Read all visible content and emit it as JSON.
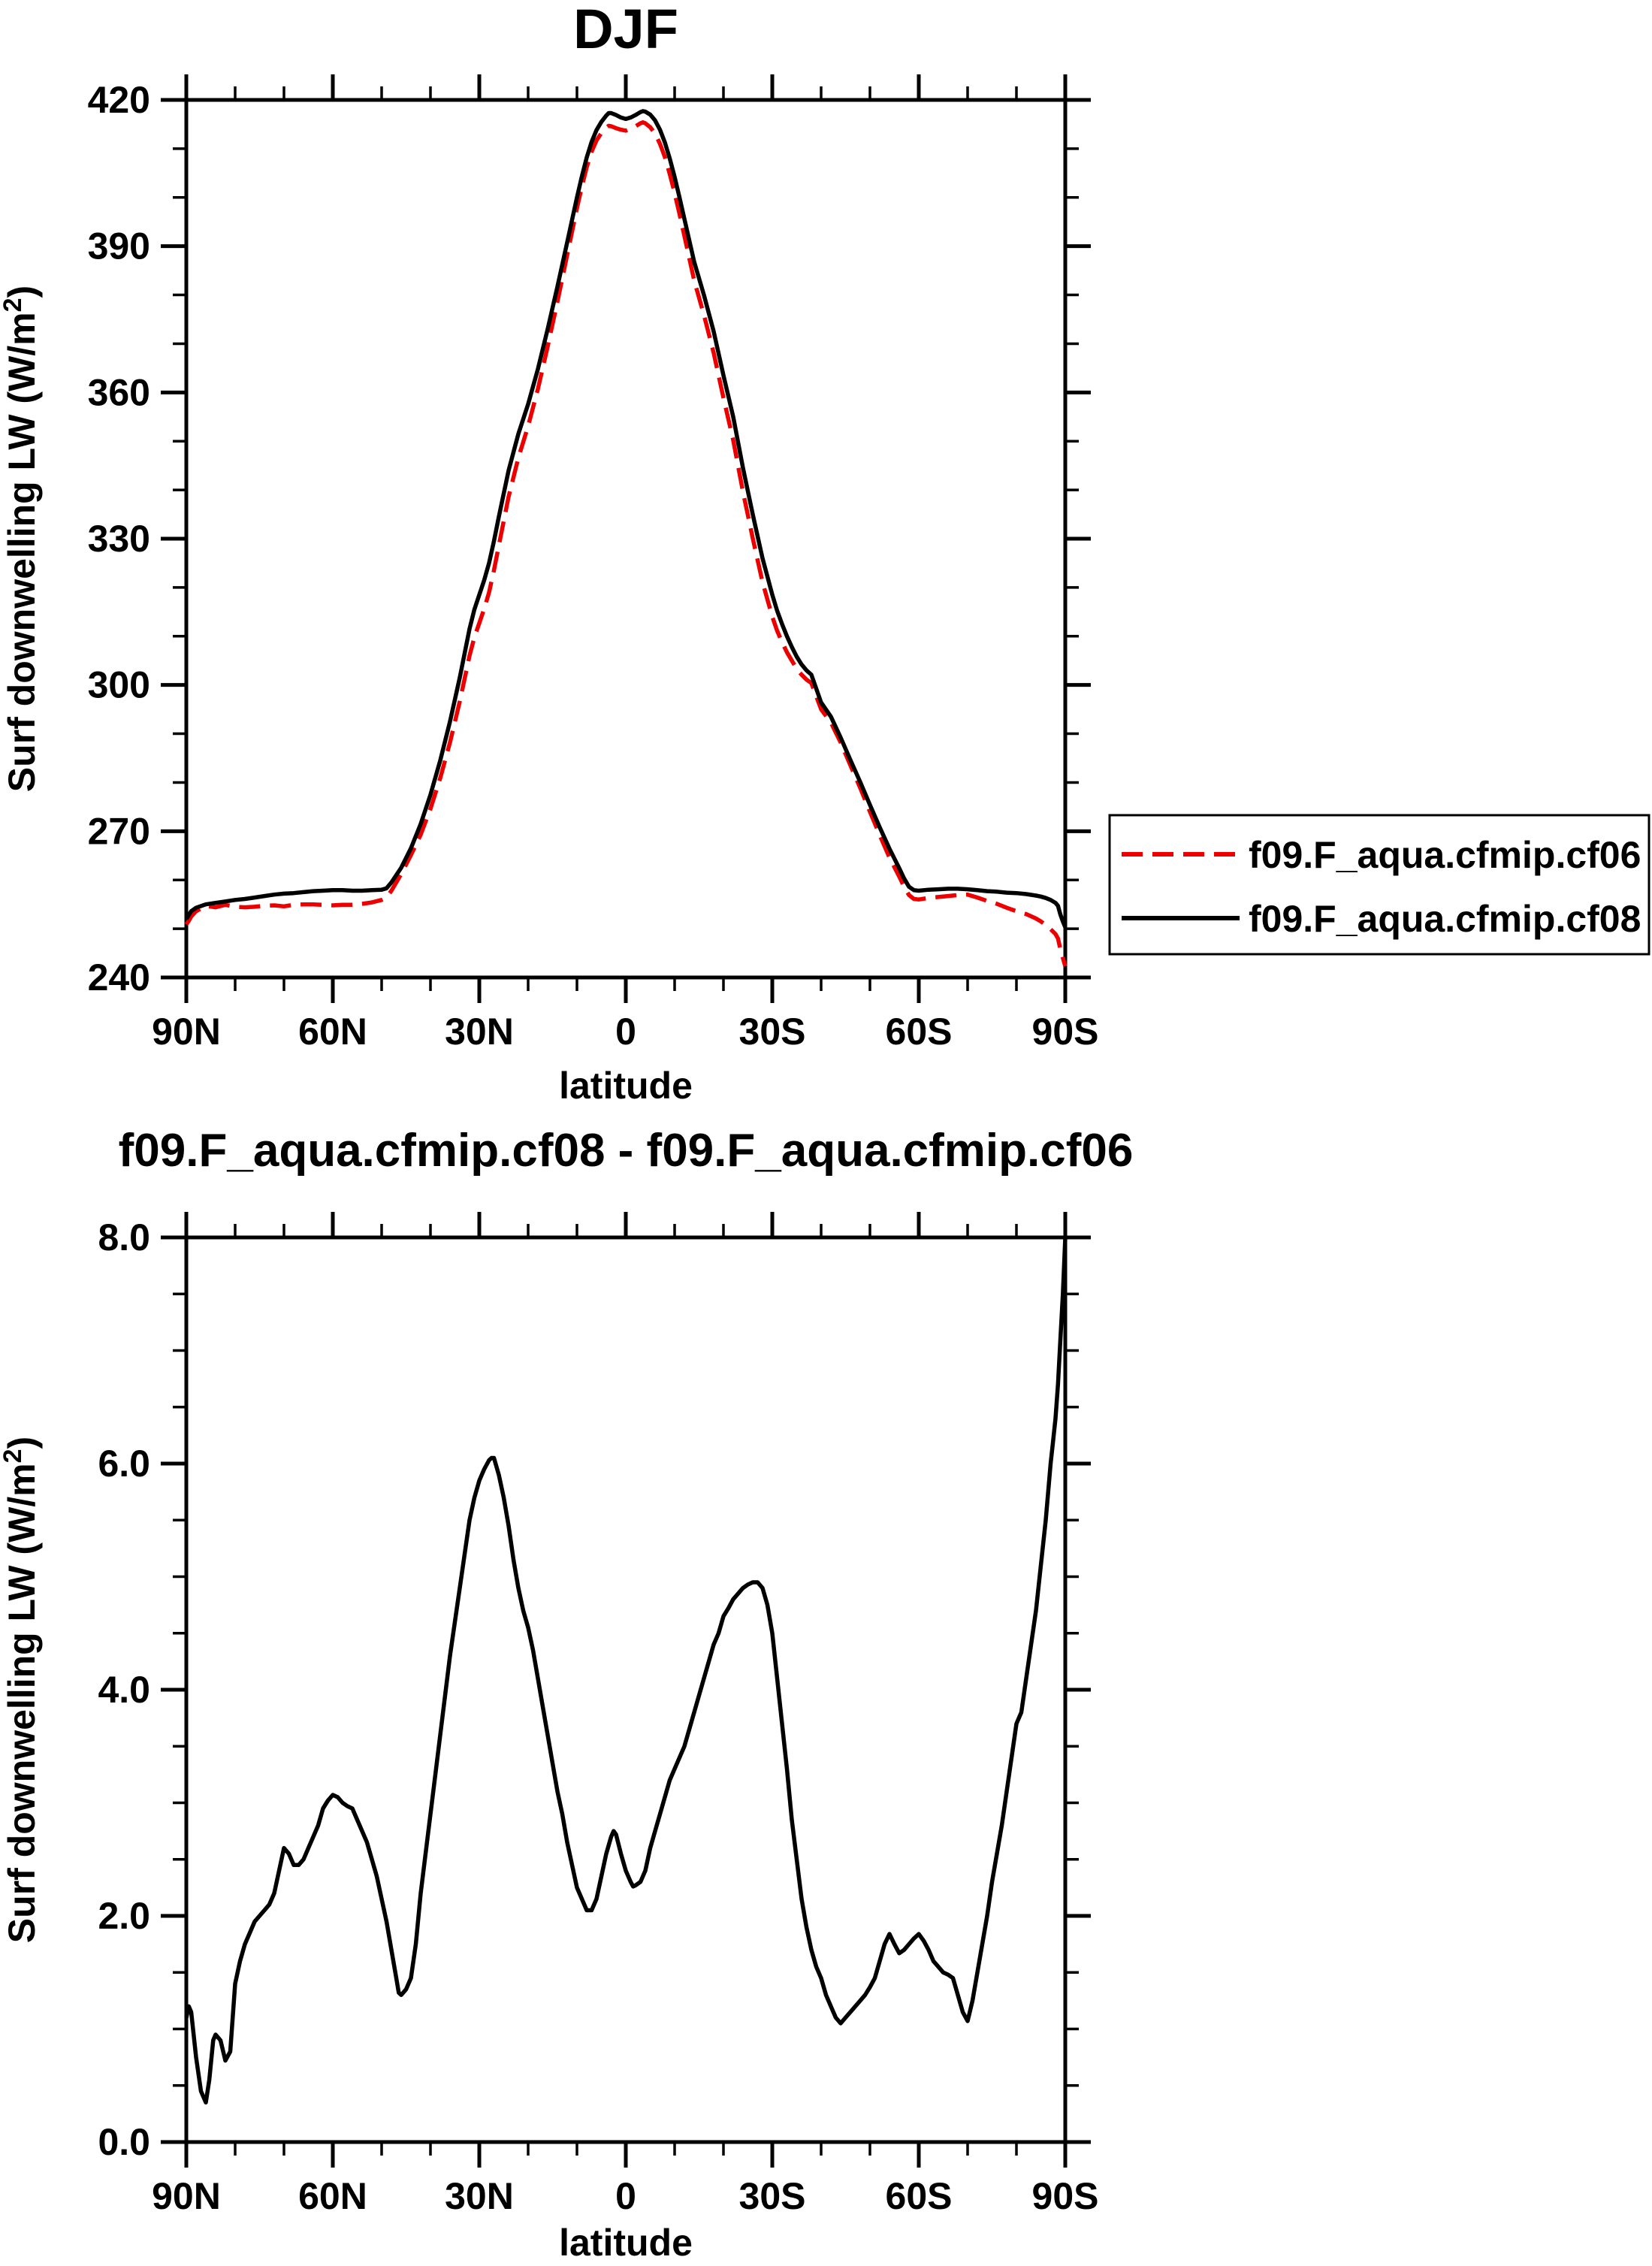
{
  "page": {
    "background": "#ffffff",
    "axis_color": "#000000"
  },
  "chart_data": [
    {
      "type": "line",
      "title": "DJF",
      "xlabel": "latitude",
      "ylabel_parts": [
        "Surf downwelling LW (W/m",
        "2",
        ")"
      ],
      "xlim": [
        90,
        -90
      ],
      "ylim": [
        240,
        420
      ],
      "y_major_step": 30,
      "y_minor_step": 10,
      "x_major_step": 30,
      "x_minor_step": 10,
      "ytick_labels": [
        "240",
        "270",
        "300",
        "330",
        "360",
        "390",
        "420"
      ],
      "ytick_values": [
        240,
        270,
        300,
        330,
        360,
        390,
        420
      ],
      "xtick_labels": [
        "90N",
        "60N",
        "30N",
        "0",
        "30S",
        "60S",
        "90S"
      ],
      "xtick_values": [
        90,
        60,
        30,
        0,
        -30,
        -60,
        -90
      ],
      "legend_position": "right-outside",
      "grid": false,
      "lats": [
        90,
        89.5,
        89,
        88,
        86,
        84,
        82,
        80,
        78,
        76,
        74,
        72,
        70,
        68,
        66,
        64,
        62,
        60,
        58,
        56,
        54,
        52,
        50,
        49,
        48,
        46,
        44,
        42,
        40,
        38,
        36,
        34,
        32,
        31,
        30,
        29,
        28,
        27,
        26,
        24,
        22,
        20,
        18,
        16,
        14,
        12,
        11,
        10,
        9,
        8,
        7,
        6,
        5,
        4,
        3.5,
        3,
        2,
        1,
        0,
        -1,
        -2,
        -3,
        -3.5,
        -4,
        -5,
        -6,
        -7,
        -8,
        -9,
        -10,
        -11,
        -12,
        -14,
        -16,
        -18,
        -20,
        -22,
        -24,
        -26,
        -28,
        -30,
        -31,
        -32,
        -33,
        -34,
        -35,
        -36,
        -37,
        -38,
        -40,
        -42,
        -44,
        -46,
        -48,
        -50,
        -52,
        -54,
        -56,
        -57,
        -58,
        -59,
        -60,
        -62,
        -64,
        -66,
        -68,
        -70,
        -72,
        -74,
        -76,
        -78,
        -80,
        -82,
        -84,
        -85,
        -86,
        -87,
        -88,
        -88.5,
        -89,
        -89.5,
        -90
      ],
      "series": [
        {
          "name": "f09.F_aqua.cfmip.cf06",
          "color": "#ee0000",
          "style": "dashed",
          "values": [
            250.9,
            251.6,
            252.5,
            253.6,
            254.7,
            254.4,
            254.9,
            254.5,
            254.4,
            254.5,
            254.7,
            254.8,
            254.6,
            254.9,
            255.0,
            255.0,
            254.9,
            254.8,
            254.9,
            254.9,
            255.1,
            255.4,
            255.9,
            256.4,
            257.8,
            261.2,
            265.1,
            269.3,
            274.6,
            280.9,
            288.2,
            296.6,
            306.0,
            309.8,
            312.7,
            315.6,
            319.0,
            323.5,
            328.6,
            338.6,
            346.6,
            353.1,
            360.7,
            369.4,
            378.6,
            388.2,
            393.0,
            397.8,
            402.2,
            406.2,
            409.4,
            411.7,
            413.2,
            414.3,
            414.7,
            414.6,
            414.2,
            413.9,
            413.7,
            414.1,
            414.6,
            415.2,
            415.4,
            415.2,
            414.4,
            413.1,
            411.0,
            408.3,
            404.8,
            400.9,
            396.6,
            392.1,
            383.0,
            375.9,
            368.1,
            358.9,
            350.2,
            339.6,
            330.1,
            321.1,
            314.0,
            311.1,
            308.8,
            306.7,
            305.0,
            303.3,
            302.1,
            301.1,
            300.4,
            295.0,
            292.3,
            288.2,
            283.5,
            278.9,
            274.0,
            269.2,
            264.6,
            260.7,
            258.6,
            256.9,
            256.1,
            256.0,
            256.3,
            256.5,
            256.7,
            256.9,
            257.0,
            256.4,
            255.7,
            255.1,
            254.3,
            253.6,
            253.0,
            252.1,
            251.5,
            250.8,
            249.9,
            248.9,
            248.0,
            245.8,
            244.0,
            242.3
          ]
        },
        {
          "name": "f09.F_aqua.cfmip.cf08",
          "color": "#000000",
          "style": "solid",
          "values": [
            252.0,
            252.8,
            253.6,
            254.3,
            255.0,
            255.3,
            255.6,
            255.9,
            256.1,
            256.4,
            256.7,
            257.0,
            257.2,
            257.3,
            257.5,
            257.7,
            257.8,
            257.9,
            257.9,
            257.8,
            257.8,
            257.9,
            258.0,
            258.3,
            259.5,
            262.5,
            266.5,
            271.5,
            277.5,
            284.5,
            292.5,
            301.5,
            311.5,
            315.5,
            318.5,
            321.5,
            325.0,
            329.5,
            334.5,
            344.0,
            351.5,
            357.6,
            364.8,
            373.0,
            381.7,
            390.8,
            395.4,
            400.0,
            404.3,
            408.2,
            411.4,
            413.8,
            415.5,
            416.8,
            417.3,
            417.3,
            416.9,
            416.4,
            416.1,
            416.4,
            416.9,
            417.5,
            417.7,
            417.6,
            417.0,
            415.8,
            413.9,
            411.3,
            408.0,
            404.2,
            400.0,
            395.6,
            386.8,
            380.0,
            372.5,
            363.5,
            355.0,
            344.5,
            335.0,
            326.0,
            318.5,
            315.2,
            312.5,
            310.0,
            307.8,
            305.8,
            304.2,
            303.0,
            302.1,
            296.4,
            293.5,
            289.2,
            284.6,
            280.1,
            275.4,
            270.8,
            266.4,
            262.4,
            260.3,
            258.6,
            257.9,
            257.8,
            258.0,
            258.1,
            258.2,
            258.2,
            258.1,
            257.9,
            257.7,
            257.6,
            257.4,
            257.3,
            257.1,
            256.8,
            256.6,
            256.3,
            255.9,
            255.3,
            254.7,
            252.9,
            251.5,
            250.3
          ]
        }
      ]
    },
    {
      "type": "line",
      "title": "f09.F_aqua.cfmip.cf08 - f09.F_aqua.cfmip.cf06",
      "xlabel": "latitude",
      "ylabel_parts": [
        "Surf downwelling LW (W/m",
        "2",
        ")"
      ],
      "xlim": [
        90,
        -90
      ],
      "ylim": [
        0,
        8
      ],
      "y_major_step": 2,
      "y_minor_step": 0.5,
      "x_major_step": 30,
      "x_minor_step": 10,
      "ytick_labels": [
        "0.0",
        "2.0",
        "4.0",
        "6.0",
        "8.0"
      ],
      "ytick_values": [
        0,
        2,
        4,
        6,
        8
      ],
      "xtick_labels": [
        "90N",
        "60N",
        "30N",
        "0",
        "30S",
        "60S",
        "90S"
      ],
      "xtick_values": [
        90,
        60,
        30,
        0,
        -30,
        -60,
        -90
      ],
      "grid": false,
      "lats": [
        90,
        89.5,
        89,
        88,
        87,
        86,
        85.3,
        84.5,
        84,
        83,
        82,
        81,
        80,
        79,
        78,
        77,
        76,
        75,
        74,
        73,
        72,
        71,
        70,
        69,
        68,
        67,
        66,
        65,
        64,
        63,
        62,
        61,
        60,
        59,
        58,
        57,
        56,
        55,
        54,
        53,
        52,
        51,
        50,
        49,
        48,
        47,
        46.5,
        46,
        45,
        44,
        43,
        42,
        41,
        40,
        39,
        38,
        37,
        36,
        35,
        34,
        33,
        32,
        31,
        30,
        29,
        28,
        27.5,
        27,
        26,
        25,
        24,
        23,
        22,
        21,
        20,
        19,
        18,
        17,
        16,
        15,
        14,
        13,
        12,
        11,
        10,
        9,
        8,
        7,
        6,
        5,
        4,
        3,
        2.5,
        2,
        1,
        0,
        -1,
        -1.5,
        -2,
        -3,
        -4,
        -5,
        -6,
        -7,
        -8,
        -9,
        -10,
        -11,
        -12,
        -13,
        -14,
        -15,
        -16,
        -17,
        -18,
        -19,
        -20,
        -21,
        -22,
        -23,
        -24,
        -25,
        -26,
        -27,
        -28,
        -29,
        -30,
        -31,
        -32,
        -33,
        -34,
        -35,
        -36,
        -37,
        -38,
        -39,
        -40,
        -41,
        -42,
        -43,
        -44,
        -45,
        -46,
        -47,
        -48,
        -49,
        -50,
        -51,
        -52,
        -53,
        -54,
        -55,
        -56,
        -57,
        -58,
        -59,
        -60,
        -61,
        -62,
        -63,
        -64,
        -65,
        -66,
        -67,
        -68,
        -69,
        -70,
        -71,
        -72,
        -73,
        -74,
        -75,
        -76,
        -77,
        -78,
        -79,
        -80,
        -81,
        -82,
        -83,
        -84,
        -85,
        -86,
        -87,
        -87.5,
        -88,
        -88.5,
        -89,
        -89.5,
        -90
      ],
      "series": [
        {
          "name": "f09.F_aqua.cfmip.cf08 - f09.F_aqua.cfmip.cf06",
          "color": "#000000",
          "style": "solid",
          "values": [
            1.1,
            1.2,
            1.15,
            0.75,
            0.45,
            0.35,
            0.55,
            0.9,
            0.95,
            0.9,
            0.72,
            0.8,
            1.4,
            1.6,
            1.75,
            1.85,
            1.95,
            2.0,
            2.05,
            2.1,
            2.2,
            2.4,
            2.6,
            2.55,
            2.45,
            2.45,
            2.5,
            2.6,
            2.7,
            2.8,
            2.95,
            3.02,
            3.07,
            3.05,
            3.0,
            2.97,
            2.95,
            2.85,
            2.75,
            2.65,
            2.5,
            2.35,
            2.15,
            1.95,
            1.7,
            1.45,
            1.32,
            1.3,
            1.35,
            1.45,
            1.75,
            2.2,
            2.55,
            2.9,
            3.25,
            3.6,
            3.95,
            4.3,
            4.6,
            4.9,
            5.2,
            5.5,
            5.7,
            5.85,
            5.95,
            6.03,
            6.05,
            6.05,
            5.9,
            5.7,
            5.45,
            5.15,
            4.9,
            4.7,
            4.55,
            4.35,
            4.1,
            3.85,
            3.6,
            3.35,
            3.1,
            2.9,
            2.65,
            2.45,
            2.25,
            2.15,
            2.05,
            2.05,
            2.15,
            2.35,
            2.55,
            2.7,
            2.75,
            2.72,
            2.55,
            2.4,
            2.3,
            2.26,
            2.27,
            2.3,
            2.4,
            2.6,
            2.75,
            2.9,
            3.05,
            3.2,
            3.3,
            3.4,
            3.5,
            3.65,
            3.8,
            3.95,
            4.1,
            4.25,
            4.4,
            4.5,
            4.65,
            4.72,
            4.8,
            4.85,
            4.9,
            4.93,
            4.95,
            4.95,
            4.9,
            4.75,
            4.5,
            4.1,
            3.7,
            3.3,
            2.85,
            2.5,
            2.15,
            1.9,
            1.7,
            1.55,
            1.45,
            1.3,
            1.2,
            1.1,
            1.05,
            1.1,
            1.15,
            1.2,
            1.25,
            1.3,
            1.37,
            1.45,
            1.6,
            1.75,
            1.84,
            1.75,
            1.67,
            1.7,
            1.75,
            1.8,
            1.84,
            1.78,
            1.7,
            1.6,
            1.55,
            1.5,
            1.48,
            1.45,
            1.3,
            1.15,
            1.07,
            1.25,
            1.5,
            1.75,
            2.0,
            2.3,
            2.55,
            2.8,
            3.1,
            3.4,
            3.7,
            3.8,
            4.1,
            4.4,
            4.7,
            5.1,
            5.5,
            6.0,
            6.2,
            6.4,
            6.7,
            7.1,
            7.5,
            8.0
          ]
        }
      ]
    }
  ],
  "legend": {
    "entries": [
      {
        "label": "f09.F_aqua.cfmip.cf06",
        "color": "#ee0000",
        "style": "dashed"
      },
      {
        "label": "f09.F_aqua.cfmip.cf08",
        "color": "#000000",
        "style": "solid"
      }
    ]
  }
}
